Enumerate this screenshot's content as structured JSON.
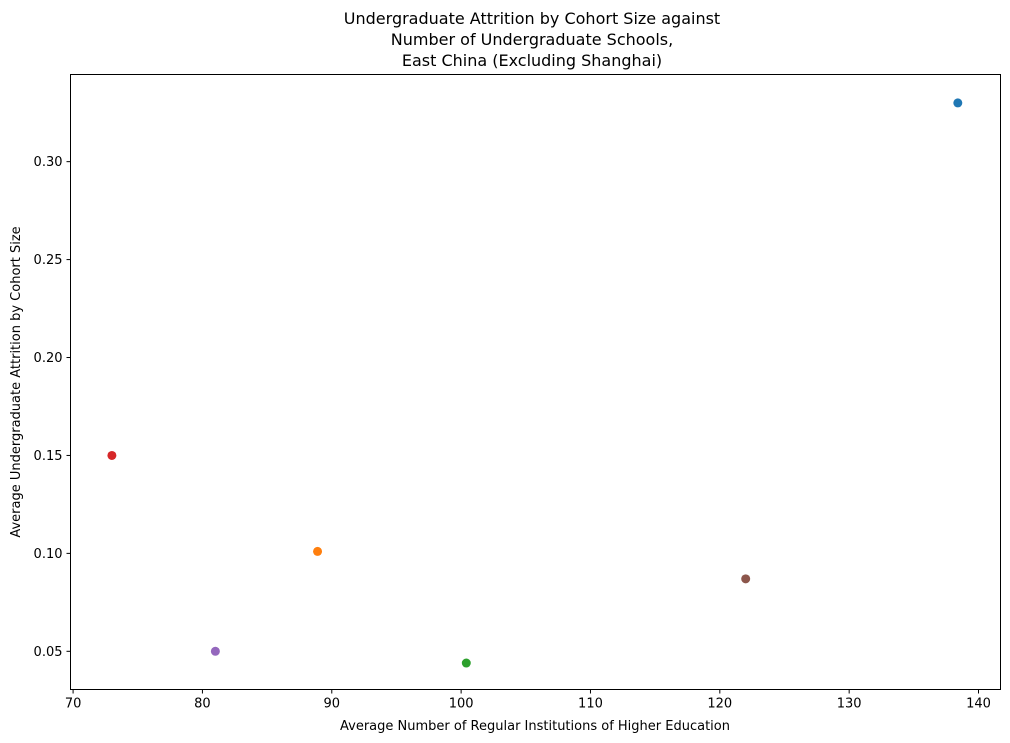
{
  "chart_data": {
    "type": "scatter",
    "title": [
      "Undergraduate Attrition by Cohort Size against",
      "Number of Undergraduate Schools,",
      "East China (Excluding Shanghai)"
    ],
    "xlabel": "Average Number of Regular Institutions of Higher Education",
    "ylabel": "Average Undergraduate Attrition by Cohort Size",
    "xlim": [
      69.8,
      141.7
    ],
    "ylim": [
      0.0305,
      0.3445
    ],
    "xticks": [
      70,
      80,
      90,
      100,
      110,
      120,
      130,
      140
    ],
    "xtick_labels": [
      "70",
      "80",
      "90",
      "100",
      "110",
      "120",
      "130",
      "140"
    ],
    "yticks": [
      0.05,
      0.1,
      0.15,
      0.2,
      0.25,
      0.3
    ],
    "ytick_labels": [
      "0.05",
      "0.10",
      "0.15",
      "0.20",
      "0.25",
      "0.30"
    ],
    "grid": false,
    "points": [
      {
        "x": 138.4,
        "y": 0.33,
        "color": "#1f77b4"
      },
      {
        "x": 88.9,
        "y": 0.101,
        "color": "#ff7f0e"
      },
      {
        "x": 100.4,
        "y": 0.044,
        "color": "#2ca02c"
      },
      {
        "x": 73.0,
        "y": 0.15,
        "color": "#d62728"
      },
      {
        "x": 81.0,
        "y": 0.05,
        "color": "#9467bd"
      },
      {
        "x": 122.0,
        "y": 0.087,
        "color": "#8c564b"
      }
    ]
  }
}
